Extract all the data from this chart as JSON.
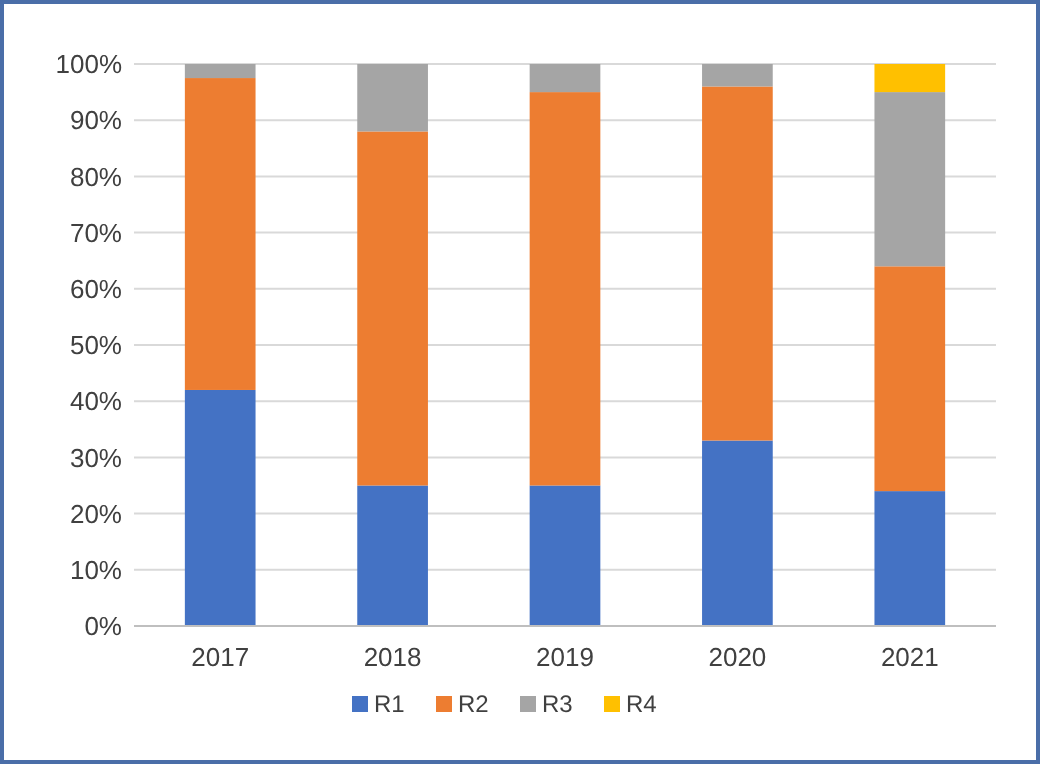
{
  "chart_data": {
    "type": "bar",
    "stacked": true,
    "categories": [
      "2017",
      "2018",
      "2019",
      "2020",
      "2021"
    ],
    "series": [
      {
        "name": "R1",
        "color": "#4472c4",
        "values": [
          42,
          25,
          25,
          33,
          24
        ]
      },
      {
        "name": "R2",
        "color": "#ed7d31",
        "values": [
          55.5,
          63,
          70,
          63,
          40
        ]
      },
      {
        "name": "R3",
        "color": "#a5a5a5",
        "values": [
          2.5,
          12,
          5,
          4,
          31
        ]
      },
      {
        "name": "R4",
        "color": "#ffc000",
        "values": [
          0,
          0,
          0,
          0,
          5
        ]
      }
    ],
    "ylim": [
      0,
      100
    ],
    "yticks": [
      {
        "value": 0,
        "label": "0%"
      },
      {
        "value": 10,
        "label": "10%"
      },
      {
        "value": 20,
        "label": "20%"
      },
      {
        "value": 30,
        "label": "30%"
      },
      {
        "value": 40,
        "label": "40%"
      },
      {
        "value": 50,
        "label": "50%"
      },
      {
        "value": 60,
        "label": "60%"
      },
      {
        "value": 70,
        "label": "70%"
      },
      {
        "value": 80,
        "label": "80%"
      },
      {
        "value": 90,
        "label": "90%"
      },
      {
        "value": 100,
        "label": "100%"
      }
    ],
    "grid": "y",
    "legend": "bottom"
  }
}
